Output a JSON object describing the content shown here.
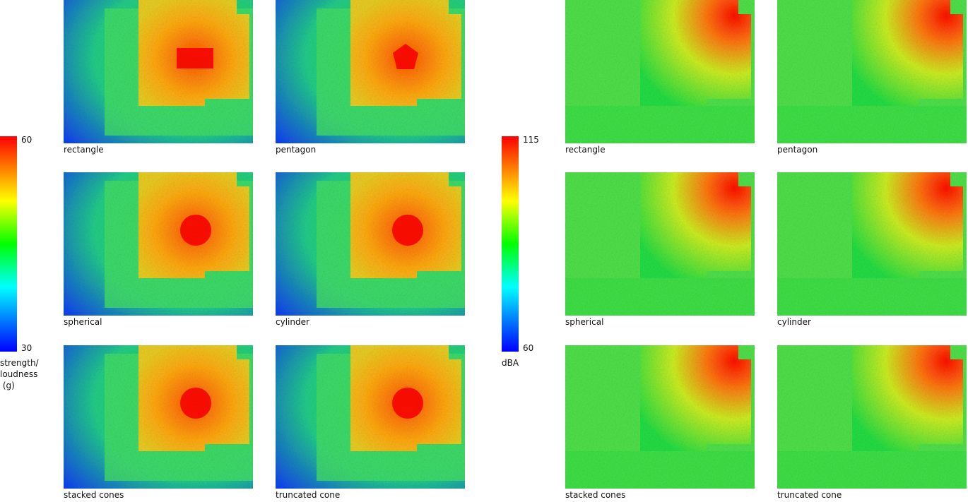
{
  "left": {
    "colorbar": {
      "max": "60",
      "min": "30",
      "title": [
        "strength/",
        "loudness",
        " (g)"
      ]
    },
    "panels": [
      "rectangle",
      "pentagon",
      "spherical",
      "cylinder",
      "stacked cones",
      "truncated cone"
    ]
  },
  "right": {
    "colorbar": {
      "max": "115",
      "min": "60",
      "title": [
        "dBA"
      ]
    },
    "panels": [
      "rectangle",
      "pentagon",
      "spherical",
      "cylinder",
      "stacked cones",
      "truncated cone"
    ]
  }
}
